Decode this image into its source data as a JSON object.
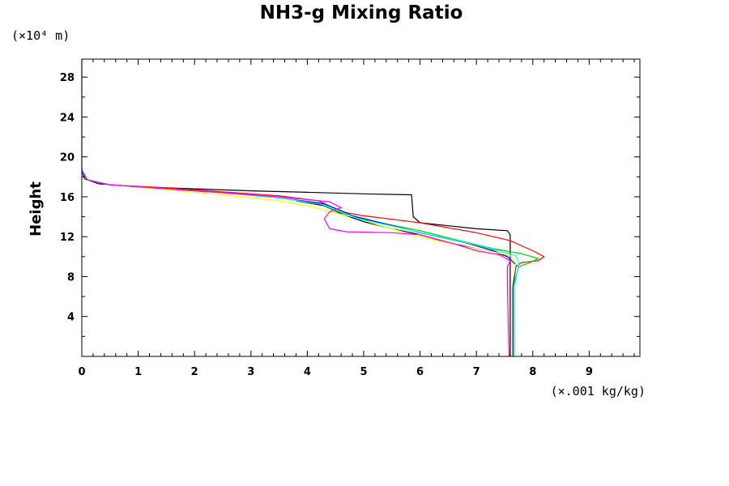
{
  "chart_data": {
    "type": "line",
    "title": "NH3-g Mixing Ratio",
    "ylabel": "Height",
    "xlabel": "",
    "y_unit": "(×10⁴ m)",
    "x_unit": "(×.001 kg/kg)",
    "xlim": [
      0,
      9.9
    ],
    "ylim": [
      0,
      29.8
    ],
    "x_ticks": [
      0,
      1,
      2,
      3,
      4,
      5,
      6,
      7,
      8,
      9
    ],
    "y_ticks": [
      4,
      8,
      12,
      16,
      20,
      24,
      28
    ],
    "grid": false,
    "series": [
      {
        "color": "#000000",
        "points": [
          [
            0.0,
            18.6
          ],
          [
            0.05,
            17.8
          ],
          [
            0.3,
            17.3
          ],
          [
            1.0,
            17.0
          ],
          [
            2.0,
            16.8
          ],
          [
            3.0,
            16.6
          ],
          [
            4.0,
            16.45
          ],
          [
            5.0,
            16.3
          ],
          [
            5.85,
            16.2
          ],
          [
            5.88,
            14.0
          ],
          [
            6.0,
            13.4
          ],
          [
            6.5,
            13.1
          ],
          [
            7.0,
            12.8
          ],
          [
            7.55,
            12.6
          ],
          [
            7.6,
            12.2
          ],
          [
            7.6,
            10.0
          ],
          [
            7.6,
            9.0
          ],
          [
            7.6,
            0.0
          ]
        ]
      },
      {
        "color": "#000000",
        "points": [
          [
            3.8,
            15.6
          ],
          [
            4.3,
            15.1
          ],
          [
            4.6,
            14.3
          ],
          [
            5.0,
            13.5
          ],
          [
            5.5,
            12.8
          ],
          [
            6.0,
            12.2
          ],
          [
            6.5,
            11.4
          ],
          [
            7.0,
            10.8
          ],
          [
            7.3,
            10.5
          ],
          [
            7.55,
            10.0
          ]
        ]
      },
      {
        "color": "#ff0000",
        "points": [
          [
            0.0,
            18.8
          ],
          [
            0.1,
            17.7
          ],
          [
            0.5,
            17.2
          ],
          [
            1.5,
            16.9
          ],
          [
            2.5,
            16.5
          ],
          [
            3.5,
            16.1
          ],
          [
            4.2,
            15.6
          ],
          [
            4.5,
            14.8
          ],
          [
            4.7,
            14.4
          ],
          [
            5.0,
            14.1
          ],
          [
            6.0,
            13.4
          ],
          [
            7.0,
            12.4
          ],
          [
            7.6,
            11.6
          ],
          [
            8.0,
            10.6
          ],
          [
            8.2,
            10.0
          ],
          [
            8.1,
            9.6
          ],
          [
            7.8,
            9.4
          ],
          [
            7.7,
            9.0
          ],
          [
            7.65,
            7.0
          ],
          [
            7.65,
            0.0
          ]
        ]
      },
      {
        "color": "#00cc00",
        "points": [
          [
            0.0,
            18.8
          ],
          [
            0.1,
            17.7
          ],
          [
            0.5,
            17.2
          ],
          [
            1.5,
            16.8
          ],
          [
            2.5,
            16.4
          ],
          [
            3.5,
            15.9
          ],
          [
            4.2,
            15.4
          ],
          [
            4.5,
            14.6
          ],
          [
            4.8,
            14.0
          ],
          [
            5.2,
            13.5
          ],
          [
            6.0,
            12.6
          ],
          [
            6.7,
            11.6
          ],
          [
            7.3,
            10.8
          ],
          [
            7.8,
            10.3
          ],
          [
            8.1,
            9.8
          ],
          [
            7.95,
            9.4
          ],
          [
            7.75,
            9.0
          ],
          [
            7.65,
            7.0
          ],
          [
            7.65,
            0.0
          ]
        ]
      },
      {
        "color": "#0000ff",
        "points": [
          [
            0.0,
            18.8
          ],
          [
            0.1,
            17.7
          ],
          [
            0.5,
            17.2
          ],
          [
            1.5,
            16.8
          ],
          [
            2.5,
            16.4
          ],
          [
            3.5,
            15.9
          ],
          [
            4.3,
            15.3
          ],
          [
            4.6,
            14.6
          ],
          [
            4.8,
            14.1
          ],
          [
            5.3,
            13.4
          ],
          [
            6.0,
            12.4
          ],
          [
            6.8,
            11.4
          ],
          [
            7.3,
            10.6
          ],
          [
            7.55,
            10.0
          ],
          [
            7.7,
            9.2
          ],
          [
            7.65,
            7.0
          ],
          [
            7.65,
            0.0
          ]
        ]
      },
      {
        "color": "#ffff00",
        "points": [
          [
            0.0,
            18.8
          ],
          [
            0.1,
            17.7
          ],
          [
            0.5,
            17.2
          ],
          [
            1.5,
            16.7
          ],
          [
            2.5,
            16.2
          ],
          [
            3.5,
            15.6
          ],
          [
            4.1,
            15.0
          ],
          [
            4.4,
            14.5
          ],
          [
            4.8,
            14.0
          ],
          [
            5.3,
            13.1
          ],
          [
            6.0,
            12.0
          ],
          [
            6.7,
            11.1
          ],
          [
            7.2,
            10.6
          ],
          [
            7.6,
            10.1
          ],
          [
            7.7,
            9.4
          ],
          [
            7.63,
            7.0
          ],
          [
            7.63,
            0.0
          ]
        ]
      },
      {
        "color": "#00ffff",
        "points": [
          [
            0.0,
            18.8
          ],
          [
            0.1,
            17.7
          ],
          [
            0.5,
            17.2
          ],
          [
            1.5,
            16.8
          ],
          [
            2.5,
            16.4
          ],
          [
            3.5,
            15.9
          ],
          [
            4.3,
            15.2
          ],
          [
            4.6,
            14.5
          ],
          [
            4.9,
            13.8
          ],
          [
            5.4,
            13.2
          ],
          [
            6.1,
            12.3
          ],
          [
            6.9,
            11.3
          ],
          [
            7.4,
            10.6
          ],
          [
            7.7,
            10.1
          ],
          [
            7.75,
            9.4
          ],
          [
            7.68,
            7.0
          ],
          [
            7.68,
            0.0
          ]
        ]
      },
      {
        "color": "#ff00ff",
        "points": [
          [
            0.0,
            29.8
          ],
          [
            0.0,
            19.5
          ],
          [
            0.0,
            18.6
          ],
          [
            0.1,
            17.7
          ],
          [
            0.5,
            17.2
          ],
          [
            1.5,
            16.8
          ],
          [
            2.5,
            16.4
          ],
          [
            3.5,
            16.0
          ],
          [
            4.4,
            15.5
          ],
          [
            4.6,
            14.9
          ],
          [
            4.4,
            14.5
          ],
          [
            4.3,
            13.8
          ],
          [
            4.4,
            12.8
          ],
          [
            4.7,
            12.5
          ],
          [
            5.5,
            12.4
          ],
          [
            6.0,
            12.2
          ],
          [
            6.6,
            11.3
          ],
          [
            7.0,
            10.6
          ],
          [
            7.4,
            10.2
          ],
          [
            7.6,
            9.6
          ],
          [
            7.55,
            9.0
          ],
          [
            7.55,
            7.0
          ],
          [
            7.58,
            0.0
          ]
        ]
      }
    ]
  }
}
